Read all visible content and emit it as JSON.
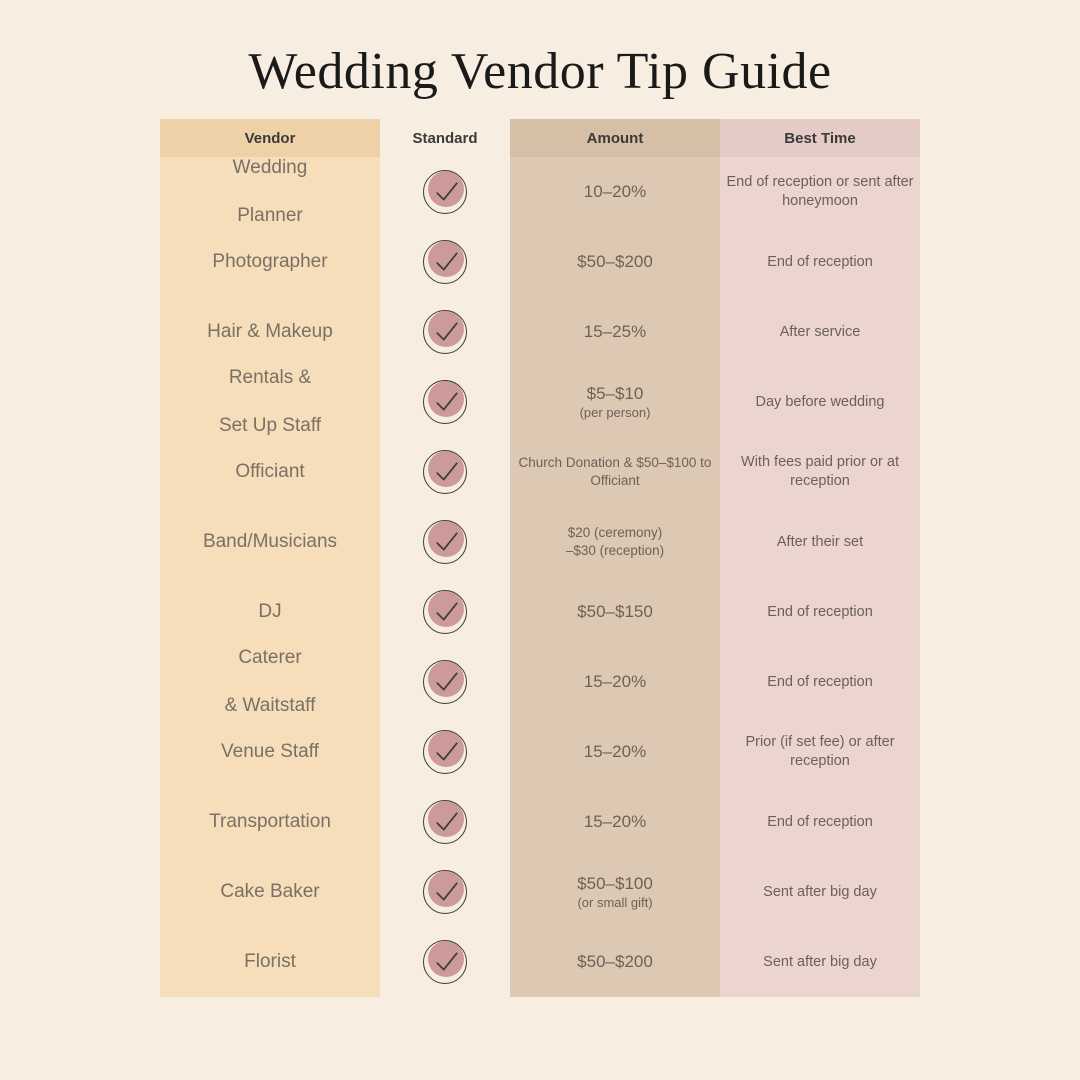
{
  "title": "Wedding Vendor Tip Guide",
  "headers": {
    "vendor": "Vendor",
    "standard": "Standard",
    "amount": "Amount",
    "time": "Best Time"
  },
  "colors": {
    "page_bg": "#f7ede1",
    "header_vendor_bg": "#efd1a7",
    "header_standard_bg": "#f7ede1",
    "header_amount_bg": "#d6bfa7",
    "header_time_bg": "#e5cbc5",
    "cell_vendor_bg": "#f5deb9",
    "cell_standard_bg": "#f7ede1",
    "cell_amount_bg": "#ddc9b3",
    "cell_time_bg": "#ecd5cf",
    "text_dark": "#3a3a3a",
    "text_body": "#6b6158",
    "check_fill": "#cd9a9a",
    "check_stroke": "#3d3d3d"
  },
  "rows": [
    {
      "vendor": "Wedding\nPlanner",
      "standard": true,
      "amount": "10–20%",
      "time": "End of reception or sent after honeymoon"
    },
    {
      "vendor": "Photographer",
      "standard": true,
      "amount": "$50–$200",
      "time": "End of reception"
    },
    {
      "vendor": "Hair & Makeup",
      "standard": true,
      "amount": "15–25%",
      "time": "After service"
    },
    {
      "vendor": "Rentals &\nSet Up Staff",
      "standard": true,
      "amount": "$5–$10",
      "amount_sub": "(per person)",
      "time": "Day before wedding"
    },
    {
      "vendor": "Officiant",
      "standard": true,
      "amount_small": "Church Donation & $50–$100 to Officiant",
      "time": "With fees paid prior or at reception"
    },
    {
      "vendor": "Band/Musicians",
      "standard": true,
      "amount_small": "$20 (ceremony)\n–$30 (reception)",
      "time": "After their set"
    },
    {
      "vendor": "DJ",
      "standard": true,
      "amount": "$50–$150",
      "time": "End of reception"
    },
    {
      "vendor": "Caterer\n& Waitstaff",
      "standard": true,
      "amount": "15–20%",
      "time": "End of reception"
    },
    {
      "vendor": "Venue Staff",
      "standard": true,
      "amount": "15–20%",
      "time": "Prior (if set fee) or after reception"
    },
    {
      "vendor": "Transportation",
      "standard": true,
      "amount": "15–20%",
      "time": "End of reception"
    },
    {
      "vendor": "Cake Baker",
      "standard": true,
      "amount": "$50–$100",
      "amount_sub": "(or small gift)",
      "time": "Sent after big day"
    },
    {
      "vendor": "Florist",
      "standard": true,
      "amount": "$50–$200",
      "time": "Sent after big day"
    }
  ]
}
